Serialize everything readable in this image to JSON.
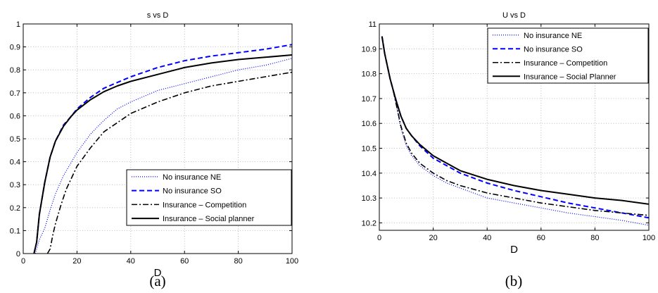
{
  "chart_data": [
    {
      "type": "line",
      "title": "s vs D",
      "xlabel": "D",
      "ylabel": "",
      "xlim": [
        0,
        100
      ],
      "ylim": [
        0,
        1
      ],
      "xticks": [
        "0",
        "20",
        "40",
        "60",
        "80",
        "100"
      ],
      "yticks": [
        "0",
        "0.1",
        "0.2",
        "0.3",
        "0.4",
        "0.5",
        "0.6",
        "0.7",
        "0.8",
        "0.9",
        "1"
      ],
      "grid": true,
      "legend_position": "bottom-right",
      "caption": "(a)",
      "series": [
        {
          "name": "No insurance NE",
          "style": "dotted",
          "color": "#0000ff",
          "x": [
            4.5,
            5,
            6,
            8,
            10,
            12,
            15,
            18,
            20,
            25,
            30,
            35,
            40,
            50,
            60,
            70,
            80,
            90,
            100
          ],
          "y": [
            0,
            0.02,
            0.06,
            0.11,
            0.19,
            0.26,
            0.34,
            0.4,
            0.44,
            0.52,
            0.58,
            0.63,
            0.66,
            0.71,
            0.74,
            0.77,
            0.8,
            0.82,
            0.85
          ]
        },
        {
          "name": "No insurance SO",
          "style": "dashed",
          "color": "#0000ff",
          "x": [
            4,
            5,
            6,
            8,
            10,
            12,
            15,
            18,
            20,
            25,
            30,
            35,
            40,
            50,
            60,
            70,
            80,
            90,
            100
          ],
          "y": [
            0,
            0.05,
            0.17,
            0.31,
            0.42,
            0.49,
            0.56,
            0.6,
            0.63,
            0.68,
            0.72,
            0.745,
            0.77,
            0.81,
            0.84,
            0.86,
            0.875,
            0.89,
            0.91
          ]
        },
        {
          "name": "Insurance – Competition",
          "style": "dashdot",
          "color": "#000000",
          "x": [
            9,
            10,
            11,
            12,
            14,
            16,
            18,
            20,
            25,
            30,
            35,
            40,
            50,
            60,
            70,
            80,
            90,
            100
          ],
          "y": [
            0,
            0.02,
            0.08,
            0.13,
            0.21,
            0.28,
            0.33,
            0.38,
            0.46,
            0.53,
            0.57,
            0.61,
            0.66,
            0.7,
            0.73,
            0.75,
            0.77,
            0.79
          ]
        },
        {
          "name": "Insurance – Social planner",
          "style": "solid",
          "color": "#000000",
          "x": [
            4,
            5,
            6,
            8,
            10,
            12,
            15,
            18,
            20,
            25,
            30,
            35,
            40,
            50,
            60,
            70,
            80,
            90,
            100
          ],
          "y": [
            0,
            0.05,
            0.17,
            0.31,
            0.42,
            0.49,
            0.555,
            0.6,
            0.625,
            0.67,
            0.705,
            0.73,
            0.75,
            0.78,
            0.81,
            0.83,
            0.845,
            0.855,
            0.865
          ]
        }
      ]
    },
    {
      "type": "line",
      "title": "U vs D",
      "xlabel": "D",
      "ylabel": "",
      "xlim": [
        0,
        100
      ],
      "ylim": [
        10.17,
        11
      ],
      "xticks": [
        "0",
        "20",
        "40",
        "60",
        "80",
        "100"
      ],
      "yticks": [
        "10.2",
        "10.3",
        "10.4",
        "10.5",
        "10.6",
        "10.7",
        "10.8",
        "10.9",
        "11"
      ],
      "grid": true,
      "legend_position": "top-right",
      "caption": "(b)",
      "series": [
        {
          "name": "No insurance NE",
          "style": "dotted",
          "color": "#0000ff",
          "x": [
            1,
            2,
            3,
            4,
            5,
            6,
            8,
            10,
            12,
            15,
            20,
            25,
            30,
            40,
            50,
            60,
            70,
            80,
            90,
            100
          ],
          "y": [
            10.95,
            10.88,
            10.83,
            10.78,
            10.74,
            10.69,
            10.58,
            10.51,
            10.47,
            10.43,
            10.39,
            10.36,
            10.34,
            10.3,
            10.28,
            10.26,
            10.24,
            10.225,
            10.21,
            10.19
          ]
        },
        {
          "name": "No insurance SO",
          "style": "dashed",
          "color": "#0000ff",
          "x": [
            1,
            2,
            3,
            4,
            5,
            6,
            8,
            10,
            12,
            15,
            20,
            25,
            30,
            40,
            50,
            60,
            70,
            80,
            90,
            100
          ],
          "y": [
            10.95,
            10.88,
            10.83,
            10.78,
            10.74,
            10.7,
            10.63,
            10.58,
            10.55,
            10.51,
            10.46,
            10.43,
            10.4,
            10.36,
            10.33,
            10.305,
            10.28,
            10.26,
            10.24,
            10.22
          ]
        },
        {
          "name": "Insurance – Competition",
          "style": "dashdot",
          "color": "#000000",
          "x": [
            1,
            2,
            3,
            4,
            5,
            6,
            8,
            10,
            12,
            15,
            20,
            25,
            30,
            40,
            50,
            60,
            70,
            80,
            90,
            100
          ],
          "y": [
            10.95,
            10.88,
            10.83,
            10.78,
            10.74,
            10.69,
            10.59,
            10.52,
            10.48,
            10.44,
            10.4,
            10.37,
            10.35,
            10.32,
            10.3,
            10.28,
            10.265,
            10.25,
            10.24,
            10.23
          ]
        },
        {
          "name": "Insurance – Social Planner",
          "style": "solid",
          "color": "#000000",
          "x": [
            1,
            2,
            3,
            4,
            5,
            6,
            8,
            10,
            12,
            15,
            20,
            25,
            30,
            40,
            50,
            60,
            70,
            80,
            90,
            100
          ],
          "y": [
            10.95,
            10.88,
            10.83,
            10.78,
            10.74,
            10.7,
            10.63,
            10.58,
            10.55,
            10.515,
            10.47,
            10.44,
            10.41,
            10.375,
            10.35,
            10.33,
            10.315,
            10.3,
            10.29,
            10.275
          ]
        }
      ]
    }
  ]
}
